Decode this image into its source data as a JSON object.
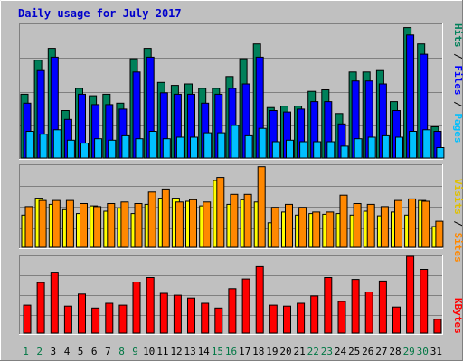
{
  "chart_data": {
    "type": "bar",
    "title": "Daily usage for July 2017",
    "days": [
      "1",
      "2",
      "3",
      "4",
      "5",
      "6",
      "7",
      "8",
      "9",
      "10",
      "11",
      "12",
      "13",
      "14",
      "15",
      "16",
      "17",
      "18",
      "19",
      "20",
      "21",
      "22",
      "23",
      "24",
      "25",
      "26",
      "27",
      "28",
      "29",
      "30",
      "31"
    ],
    "weekend_days": [
      "1",
      "2",
      "8",
      "9",
      "15",
      "16",
      "22",
      "23",
      "29",
      "30"
    ],
    "colors": {
      "title": "#0000cc",
      "weekday_label": "#000000",
      "weekend_label": "#007744",
      "background": "#c0c0c0",
      "hits": "#00805a",
      "files": "#0000ff",
      "pages": "#00c0ff",
      "visits": "#ffff00",
      "sites": "#ff8800",
      "kbytes": "#ff0000"
    },
    "panels": [
      {
        "id": "hits-files-pages",
        "ymax_label": "902",
        "ymax": 902,
        "legend": [
          {
            "name": "Pages",
            "color": "#00c0ff"
          },
          {
            "name": "Files",
            "color": "#0000ff"
          },
          {
            "name": "Hits",
            "color": "#00805a"
          }
        ],
        "series": [
          {
            "name": "Hits",
            "values": [
              430,
              660,
              740,
              320,
              470,
              420,
              430,
              370,
              670,
              740,
              510,
              490,
              500,
              470,
              470,
              550,
              670,
              770,
              340,
              350,
              350,
              450,
              460,
              300,
              580,
              580,
              590,
              380,
              880,
              770,
              210
            ]
          },
          {
            "name": "Files",
            "values": [
              370,
              590,
              680,
              260,
              430,
              360,
              360,
              330,
              580,
              680,
              440,
              430,
              430,
              370,
              430,
              470,
              500,
              680,
              320,
              310,
              330,
              380,
              380,
              230,
              520,
              520,
              500,
              320,
              830,
              700,
              180
            ]
          },
          {
            "name": "Pages",
            "values": [
              180,
              160,
              190,
              120,
              100,
              130,
              120,
              150,
              130,
              180,
              130,
              140,
              140,
              170,
              170,
              220,
              150,
              200,
              110,
              120,
              110,
              110,
              110,
              80,
              130,
              140,
              150,
              140,
              180,
              190,
              70
            ]
          }
        ]
      },
      {
        "id": "visits-sites",
        "ymax_label": "107",
        "ymax": 107,
        "legend": [
          {
            "name": "Sites",
            "color": "#ff8800"
          },
          {
            "name": "Visits",
            "color": "#ffff00"
          }
        ],
        "series": [
          {
            "name": "Visits",
            "values": [
              42,
              64,
              56,
              49,
              44,
              54,
              47,
              51,
              44,
              56,
              64,
              64,
              60,
              54,
              87,
              56,
              62,
              59,
              32,
              46,
              42,
              44,
              43,
              44,
              42,
              47,
              41,
              46,
              42,
              61,
              27
            ]
          },
          {
            "name": "Sites",
            "values": [
              53,
              61,
              61,
              61,
              57,
              53,
              57,
              59,
              57,
              72,
              76,
              59,
              62,
              59,
              91,
              69,
              69,
              105,
              52,
              56,
              52,
              46,
              46,
              68,
              57,
              56,
              53,
              61,
              63,
              60,
              34
            ]
          }
        ]
      },
      {
        "id": "kbytes",
        "ymax_label": "40751",
        "ymax": 40751,
        "legend": [
          {
            "name": "KBytes",
            "color": "#ff0000"
          }
        ],
        "series": [
          {
            "name": "KBytes",
            "values": [
              14800,
              26800,
              32300,
              14300,
              20700,
              13300,
              15800,
              14800,
              27100,
              29500,
              21100,
              20100,
              18600,
              15800,
              13300,
              23600,
              28700,
              35300,
              14800,
              14300,
              15800,
              19700,
              29500,
              16800,
              28500,
              21800,
              27600,
              13800,
              40751,
              33800,
              7300
            ]
          }
        ]
      }
    ]
  }
}
